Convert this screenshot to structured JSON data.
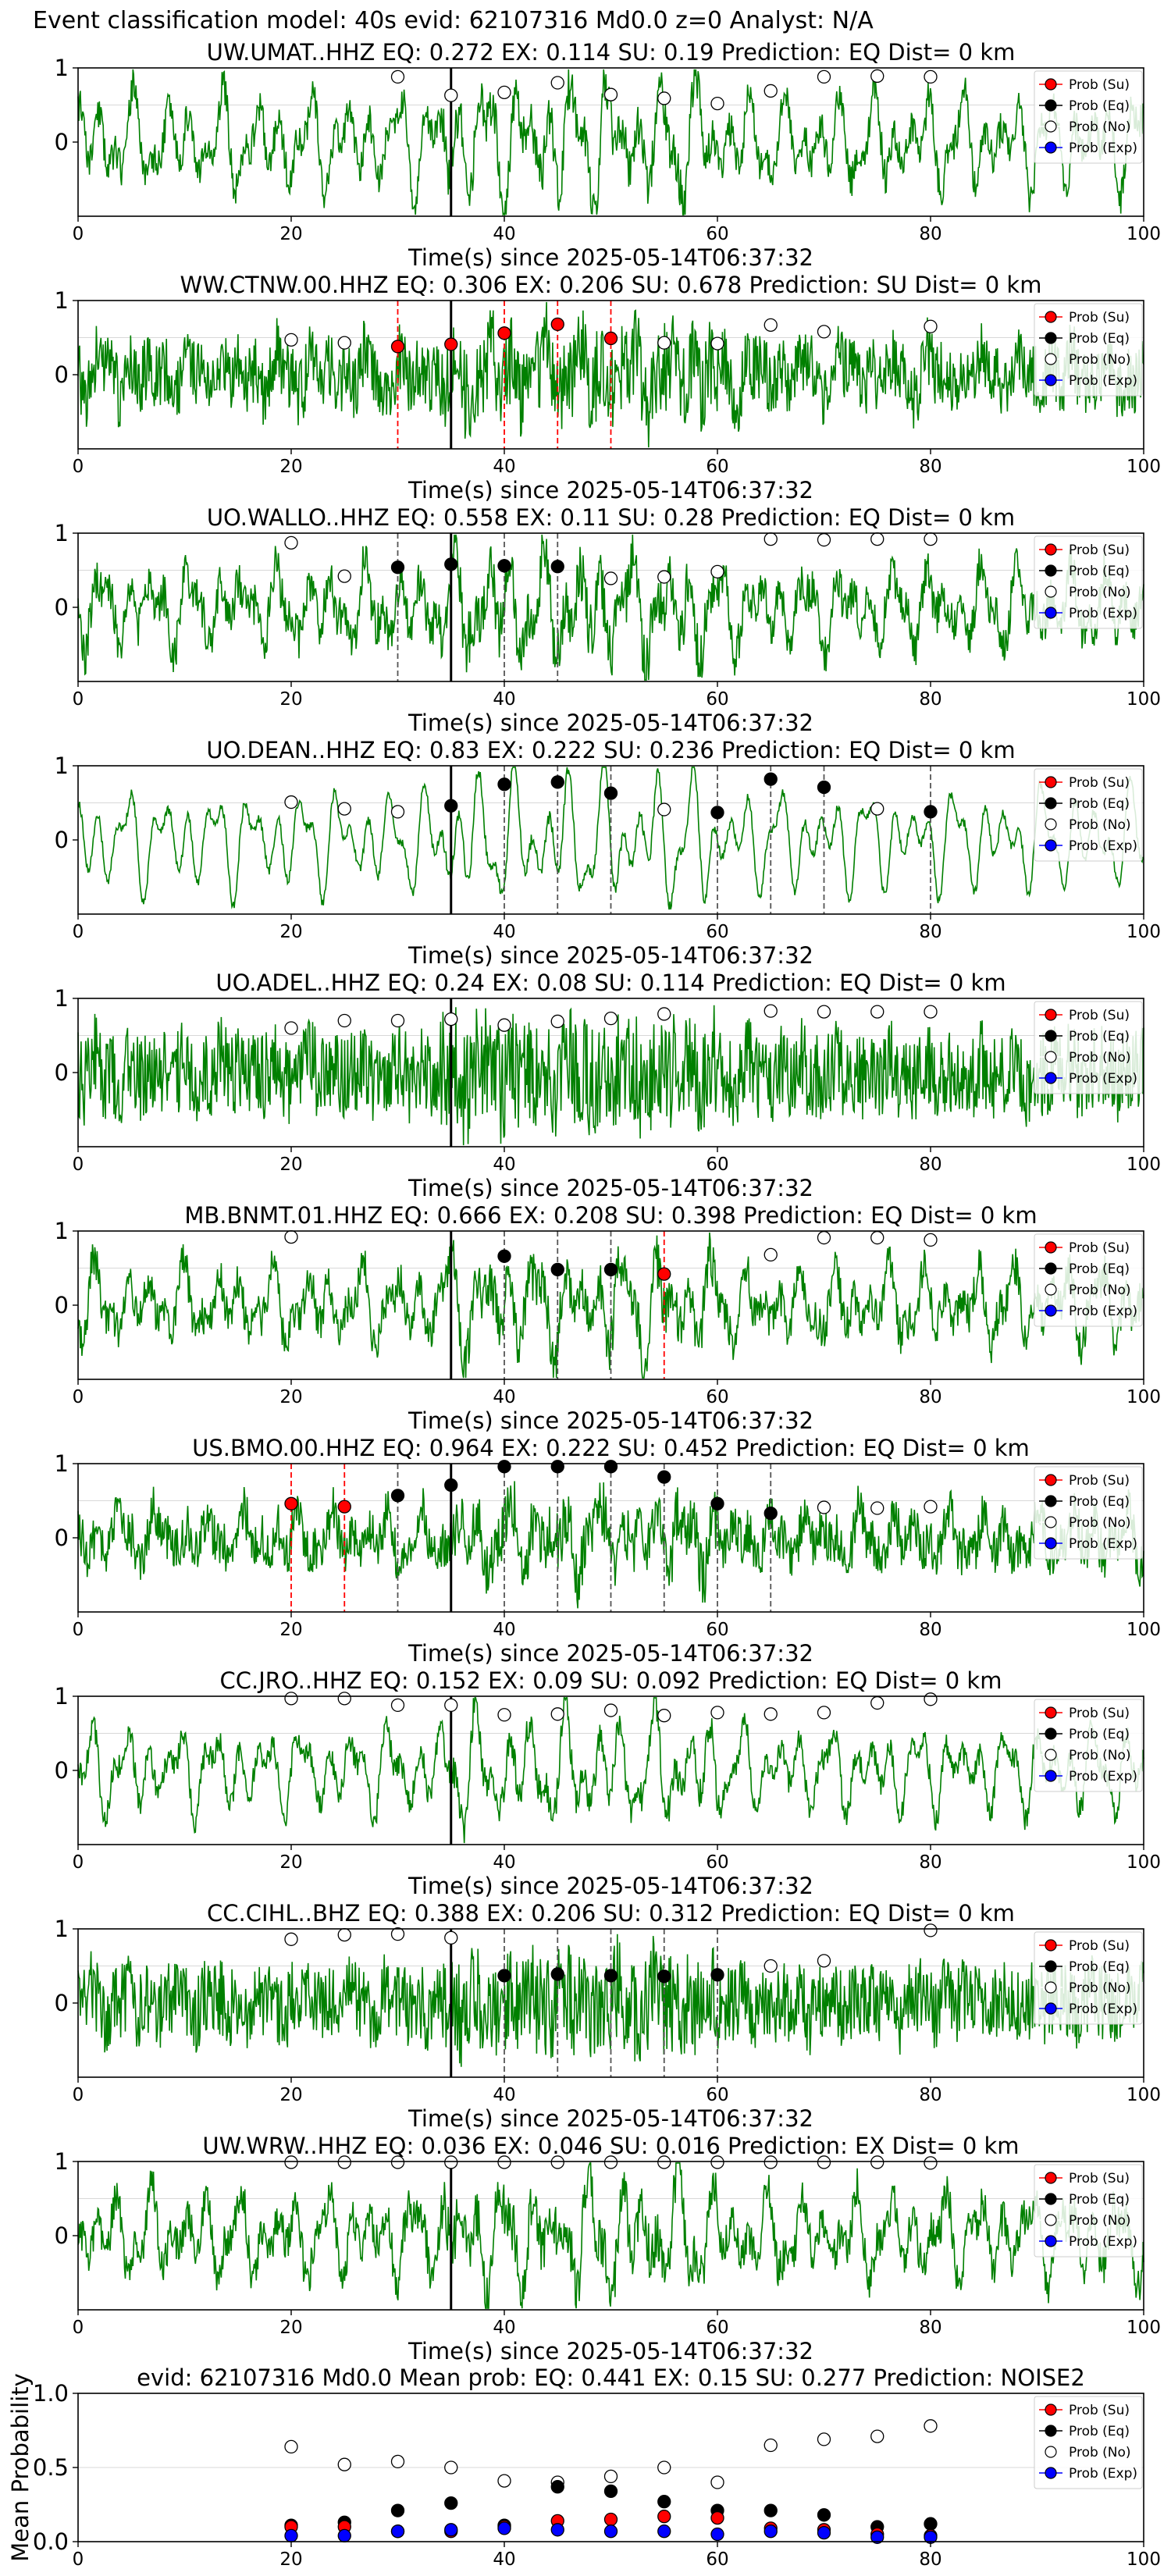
{
  "suptitle": "Event classification model: 40s evid: 62107316 Md0.0 z=0 Analyst: N/A",
  "legend_labels": [
    "Prob (Su)",
    "Prob (Eq)",
    "Prob (No)",
    "Prob (Exp)"
  ],
  "colors": {
    "waveform": "#008000",
    "su": "#ff0000",
    "eq": "#000000",
    "exp": "#0000ff",
    "vline_pick": "#000000"
  },
  "chart_data": [
    {
      "type": "line",
      "title": "UW.UMAT..HHZ   EQ: 0.272  EX: 0.114  SU: 0.19   Prediction: EQ    Dist= 0 km",
      "xlabel": "Time(s) since 2025-05-14T06:37:32",
      "xlim": [
        0,
        100
      ],
      "ylim": [
        -1,
        1
      ],
      "xticks": [
        "0",
        "20",
        "40",
        "60",
        "80",
        "100"
      ],
      "yticks": [
        "1",
        "0"
      ],
      "pick_time": 35,
      "seed": 11,
      "noise": 0.35,
      "amp": 0.55,
      "no_points": [
        [
          30,
          0.88
        ],
        [
          35,
          0.63
        ],
        [
          40,
          0.67
        ],
        [
          45,
          0.8
        ],
        [
          50,
          0.64
        ],
        [
          55,
          0.59
        ],
        [
          60,
          0.52
        ],
        [
          65,
          0.69
        ],
        [
          70,
          0.88
        ],
        [
          75,
          0.89
        ],
        [
          80,
          0.88
        ]
      ],
      "eq_points": [],
      "su_points": [],
      "eq_lines": [],
      "su_lines": []
    },
    {
      "type": "line",
      "title": "WW.CTNW.00.HHZ   EQ: 0.306  EX: 0.206  SU: 0.678   Prediction: SU    Dist= 0 km",
      "xlabel": "Time(s) since 2025-05-14T06:37:32",
      "xlim": [
        0,
        100
      ],
      "ylim": [
        -1,
        1
      ],
      "xticks": [
        "0",
        "20",
        "40",
        "60",
        "80",
        "100"
      ],
      "yticks": [
        "1",
        "0"
      ],
      "pick_time": 35,
      "seed": 23,
      "noise": 0.7,
      "amp": 0.25,
      "no_points": [
        [
          20,
          0.47
        ],
        [
          25,
          0.43
        ],
        [
          55,
          0.43
        ],
        [
          60,
          0.42
        ],
        [
          65,
          0.67
        ],
        [
          70,
          0.58
        ],
        [
          80,
          0.65
        ]
      ],
      "eq_points": [],
      "su_points": [
        [
          30,
          0.38
        ],
        [
          35,
          0.41
        ],
        [
          40,
          0.56
        ],
        [
          45,
          0.68
        ],
        [
          50,
          0.49
        ]
      ],
      "eq_lines": [],
      "su_lines": [
        30,
        35,
        40,
        45,
        50
      ]
    },
    {
      "type": "line",
      "title": "UO.WALLO..HHZ   EQ: 0.558  EX: 0.11  SU: 0.28   Prediction: EQ    Dist= 0 km",
      "xlabel": "Time(s) since 2025-05-14T06:37:32",
      "xlim": [
        0,
        100
      ],
      "ylim": [
        -1,
        1
      ],
      "xticks": [
        "0",
        "20",
        "40",
        "60",
        "80",
        "100"
      ],
      "yticks": [
        "1",
        "0"
      ],
      "pick_time": 35,
      "seed": 37,
      "noise": 0.45,
      "amp": 0.45,
      "no_points": [
        [
          20,
          0.87
        ],
        [
          25,
          0.42
        ],
        [
          50,
          0.39
        ],
        [
          55,
          0.41
        ],
        [
          60,
          0.48
        ],
        [
          65,
          0.92
        ],
        [
          70,
          0.91
        ],
        [
          75,
          0.92
        ],
        [
          80,
          0.92
        ]
      ],
      "eq_points": [
        [
          30,
          0.54
        ],
        [
          35,
          0.58
        ],
        [
          40,
          0.56
        ],
        [
          45,
          0.55
        ]
      ],
      "su_points": [],
      "eq_lines": [
        30,
        40,
        45
      ],
      "su_lines": []
    },
    {
      "type": "line",
      "title": "UO.DEAN..HHZ   EQ: 0.83  EX: 0.222  SU: 0.236   Prediction: EQ    Dist= 0 km",
      "xlabel": "Time(s) since 2025-05-14T06:37:32",
      "xlim": [
        0,
        100
      ],
      "ylim": [
        -1,
        1
      ],
      "xticks": [
        "0",
        "20",
        "40",
        "60",
        "80",
        "100"
      ],
      "yticks": [
        "1",
        "0"
      ],
      "pick_time": 35,
      "seed": 41,
      "noise": 0.1,
      "amp": 0.6,
      "no_points": [
        [
          20,
          0.51
        ],
        [
          25,
          0.42
        ],
        [
          30,
          0.38
        ],
        [
          55,
          0.41
        ],
        [
          75,
          0.42
        ]
      ],
      "eq_points": [
        [
          35,
          0.46
        ],
        [
          40,
          0.75
        ],
        [
          45,
          0.78
        ],
        [
          50,
          0.63
        ],
        [
          60,
          0.37
        ],
        [
          65,
          0.82
        ],
        [
          70,
          0.71
        ],
        [
          80,
          0.38
        ]
      ],
      "su_points": [],
      "eq_lines": [
        40,
        45,
        50,
        60,
        65,
        70,
        80
      ],
      "su_lines": []
    },
    {
      "type": "line",
      "title": "UO.ADEL..HHZ   EQ: 0.24  EX: 0.08  SU: 0.114   Prediction: EQ    Dist= 0 km",
      "xlabel": "Time(s) since 2025-05-14T06:37:32",
      "xlim": [
        0,
        100
      ],
      "ylim": [
        -1,
        1
      ],
      "xticks": [
        "0",
        "20",
        "40",
        "60",
        "80",
        "100"
      ],
      "yticks": [
        "1",
        "0"
      ],
      "pick_time": 35,
      "seed": 53,
      "noise": 0.9,
      "amp": 0.15,
      "no_points": [
        [
          20,
          0.6
        ],
        [
          25,
          0.7
        ],
        [
          30,
          0.7
        ],
        [
          35,
          0.72
        ],
        [
          40,
          0.64
        ],
        [
          45,
          0.69
        ],
        [
          50,
          0.73
        ],
        [
          55,
          0.79
        ],
        [
          65,
          0.83
        ],
        [
          70,
          0.82
        ],
        [
          75,
          0.82
        ],
        [
          80,
          0.82
        ]
      ],
      "eq_points": [],
      "su_points": [],
      "eq_lines": [],
      "su_lines": []
    },
    {
      "type": "line",
      "title": "MB.BNMT.01.HHZ   EQ: 0.666  EX: 0.208  SU: 0.398   Prediction: EQ    Dist= 0 km",
      "xlabel": "Time(s) since 2025-05-14T06:37:32",
      "xlim": [
        0,
        100
      ],
      "ylim": [
        -1,
        1
      ],
      "xticks": [
        "0",
        "20",
        "40",
        "60",
        "80",
        "100"
      ],
      "yticks": [
        "1",
        "0"
      ],
      "pick_time": 35,
      "seed": 67,
      "noise": 0.4,
      "amp": 0.45,
      "no_points": [
        [
          20,
          0.92
        ],
        [
          65,
          0.68
        ],
        [
          70,
          0.91
        ],
        [
          75,
          0.91
        ],
        [
          80,
          0.88
        ]
      ],
      "eq_points": [
        [
          40,
          0.66
        ],
        [
          45,
          0.48
        ],
        [
          50,
          0.48
        ]
      ],
      "su_points": [
        [
          55,
          0.42
        ]
      ],
      "eq_lines": [
        40,
        45,
        50
      ],
      "su_lines": [
        55
      ]
    },
    {
      "type": "line",
      "title": "US.BMO.00.HHZ   EQ: 0.964  EX: 0.222  SU: 0.452   Prediction: EQ    Dist= 0 km",
      "xlabel": "Time(s) since 2025-05-14T06:37:32",
      "xlim": [
        0,
        100
      ],
      "ylim": [
        -1,
        1
      ],
      "xticks": [
        "0",
        "20",
        "40",
        "60",
        "80",
        "100"
      ],
      "yticks": [
        "1",
        "0"
      ],
      "pick_time": 35,
      "seed": 71,
      "noise": 0.5,
      "amp": 0.3,
      "no_points": [
        [
          70,
          0.41
        ],
        [
          75,
          0.4
        ],
        [
          80,
          0.42
        ]
      ],
      "eq_points": [
        [
          30,
          0.57
        ],
        [
          35,
          0.71
        ],
        [
          40,
          0.96
        ],
        [
          45,
          0.96
        ],
        [
          50,
          0.96
        ],
        [
          55,
          0.82
        ],
        [
          60,
          0.46
        ],
        [
          65,
          0.33
        ]
      ],
      "su_points": [
        [
          20,
          0.46
        ],
        [
          25,
          0.42
        ]
      ],
      "eq_lines": [
        30,
        40,
        45,
        50,
        55,
        60,
        65
      ],
      "su_lines": [
        20,
        25
      ]
    },
    {
      "type": "line",
      "title": "CC.JRO..HHZ   EQ: 0.152  EX: 0.09  SU: 0.092   Prediction: EQ    Dist= 0 km",
      "xlabel": "Time(s) since 2025-05-14T06:37:32",
      "xlim": [
        0,
        100
      ],
      "ylim": [
        -1,
        1
      ],
      "xticks": [
        "0",
        "20",
        "40",
        "60",
        "80",
        "100"
      ],
      "yticks": [
        "1",
        "0"
      ],
      "pick_time": 35,
      "seed": 83,
      "noise": 0.25,
      "amp": 0.5,
      "no_points": [
        [
          20,
          0.97
        ],
        [
          25,
          0.97
        ],
        [
          30,
          0.88
        ],
        [
          35,
          0.88
        ],
        [
          40,
          0.75
        ],
        [
          45,
          0.76
        ],
        [
          50,
          0.81
        ],
        [
          55,
          0.74
        ],
        [
          60,
          0.78
        ],
        [
          65,
          0.76
        ],
        [
          70,
          0.78
        ],
        [
          75,
          0.91
        ],
        [
          80,
          0.96
        ]
      ],
      "eq_points": [],
      "su_points": [],
      "eq_lines": [],
      "su_lines": []
    },
    {
      "type": "line",
      "title": "CC.CIHL..BHZ   EQ: 0.388  EX: 0.206  SU: 0.312   Prediction: EQ    Dist= 0 km",
      "xlabel": "Time(s) since 2025-05-14T06:37:32",
      "xlim": [
        0,
        100
      ],
      "ylim": [
        -1,
        1
      ],
      "xticks": [
        "0",
        "20",
        "40",
        "60",
        "80",
        "100"
      ],
      "yticks": [
        "1",
        "0"
      ],
      "pick_time": 35,
      "seed": 97,
      "noise": 0.8,
      "amp": 0.15,
      "no_points": [
        [
          20,
          0.86
        ],
        [
          25,
          0.92
        ],
        [
          30,
          0.93
        ],
        [
          35,
          0.88
        ],
        [
          65,
          0.5
        ],
        [
          70,
          0.57
        ],
        [
          80,
          0.98
        ]
      ],
      "eq_points": [
        [
          40,
          0.37
        ],
        [
          45,
          0.39
        ],
        [
          50,
          0.37
        ],
        [
          55,
          0.36
        ],
        [
          60,
          0.38
        ]
      ],
      "su_points": [],
      "eq_lines": [
        40,
        45,
        50,
        55,
        60
      ],
      "su_lines": []
    },
    {
      "type": "line",
      "title": "UW.WRW..HHZ   EQ: 0.036  EX: 0.046  SU: 0.016   Prediction: EX    Dist= 0 km",
      "xlabel": "Time(s) since 2025-05-14T06:37:32",
      "xlim": [
        0,
        100
      ],
      "ylim": [
        -1,
        1
      ],
      "xticks": [
        "0",
        "20",
        "40",
        "60",
        "80",
        "100"
      ],
      "yticks": [
        "1",
        "0"
      ],
      "pick_time": 35,
      "seed": 101,
      "noise": 0.4,
      "amp": 0.5,
      "no_points": [
        [
          20,
          0.99
        ],
        [
          25,
          0.99
        ],
        [
          30,
          0.99
        ],
        [
          35,
          0.99
        ],
        [
          40,
          0.99
        ],
        [
          45,
          0.99
        ],
        [
          50,
          0.99
        ],
        [
          55,
          0.99
        ],
        [
          60,
          0.99
        ],
        [
          65,
          0.99
        ],
        [
          70,
          0.99
        ],
        [
          75,
          0.99
        ],
        [
          80,
          0.98
        ]
      ],
      "eq_points": [],
      "su_points": [],
      "eq_lines": [],
      "su_lines": []
    },
    {
      "type": "scatter",
      "title": "evid: 62107316  Md0.0   Mean prob:   EQ: 0.441  EX: 0.15  SU: 0.277   Prediction: NOISE2",
      "xlabel": "",
      "ylabel": "Mean Probability",
      "xlim": [
        0,
        100
      ],
      "ylim": [
        0,
        1
      ],
      "xticks": [
        "0",
        "20",
        "40",
        "60",
        "80",
        "100"
      ],
      "yticks": [
        "1.0",
        "0.5",
        "0.0"
      ],
      "x": [
        20,
        25,
        30,
        35,
        40,
        45,
        50,
        55,
        60,
        65,
        70,
        75,
        80
      ],
      "series": [
        {
          "name": "Prob (No)",
          "values": [
            0.64,
            0.52,
            0.54,
            0.5,
            0.41,
            0.4,
            0.44,
            0.5,
            0.4,
            0.65,
            0.69,
            0.71,
            0.78
          ]
        },
        {
          "name": "Prob (Eq)",
          "values": [
            0.11,
            0.13,
            0.21,
            0.26,
            0.11,
            0.37,
            0.34,
            0.27,
            0.21,
            0.21,
            0.18,
            0.1,
            0.12
          ]
        },
        {
          "name": "Prob (Su)",
          "values": [
            0.1,
            0.1,
            0.07,
            0.07,
            0.1,
            0.14,
            0.15,
            0.17,
            0.16,
            0.09,
            0.08,
            0.05,
            0.04
          ]
        },
        {
          "name": "Prob (Exp)",
          "values": [
            0.04,
            0.04,
            0.07,
            0.08,
            0.09,
            0.08,
            0.07,
            0.07,
            0.05,
            0.07,
            0.06,
            0.03,
            0.03
          ]
        }
      ]
    }
  ]
}
